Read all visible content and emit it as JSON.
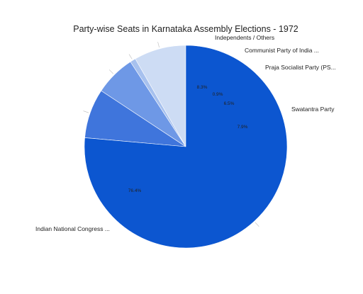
{
  "chart_data": {
    "type": "pie",
    "title": "Party-wise Seats in Karnataka Assembly Elections - 1972",
    "slices": [
      {
        "label": "Independents / Others",
        "value": 8.3,
        "value_label": "8.3%",
        "color": "#cddcf4"
      },
      {
        "label": "Communist Party of India ...",
        "value": 0.9,
        "value_label": "0.9%",
        "color": "#a7c1ee"
      },
      {
        "label": "Praja Socialist Party (PS...",
        "value": 6.5,
        "value_label": "6.5%",
        "color": "#6e98e6"
      },
      {
        "label": "Swatantra Party",
        "value": 7.9,
        "value_label": "7.9%",
        "color": "#3f75dc"
      },
      {
        "label": "Indian National Congress ...",
        "value": 76.4,
        "value_label": "76.4%",
        "color": "#0c56d0"
      }
    ],
    "start_angle_deg": 0,
    "direction": "counterclockwise",
    "legend": "none"
  }
}
